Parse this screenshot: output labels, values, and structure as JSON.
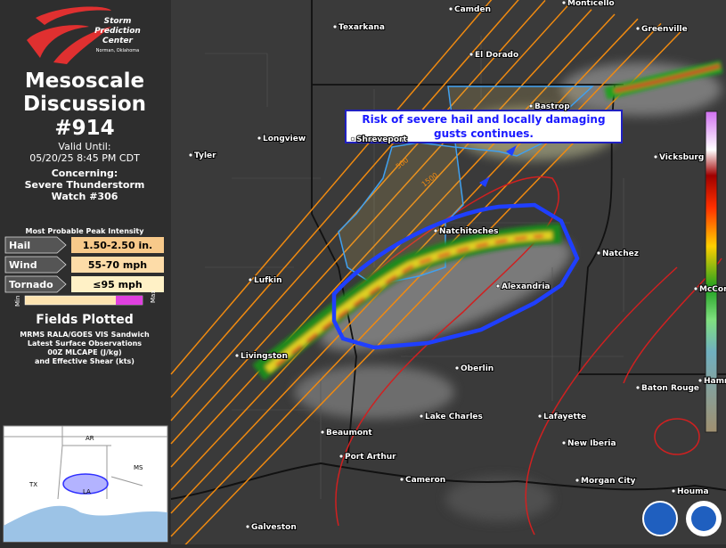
{
  "header": {
    "logo_lines": [
      "Storm",
      "Prediction",
      "Center"
    ],
    "logo_sub": "Norman, Oklahoma",
    "title_lines": [
      "Mesoscale",
      "Discussion",
      "#914"
    ],
    "valid_label": "Valid Until:",
    "valid_time": "05/20/25 8:45 PM CDT",
    "concerning_label": "Concerning:",
    "concerning": [
      "Severe Thunderstorm",
      "Watch #306"
    ]
  },
  "intensity": {
    "title": "Most Probable Peak Intensity",
    "rows": [
      {
        "label": "Hail",
        "value": "1.50-2.50 in."
      },
      {
        "label": "Wind",
        "value": "55-70 mph"
      },
      {
        "label": "Tornado",
        "value": "≤95 mph"
      }
    ],
    "scale": [
      "Min",
      "Max"
    ]
  },
  "fields": {
    "title": "Fields Plotted",
    "lines": [
      "MRMS RALA/GOES VIS Sandwich",
      "Latest Surface Observations",
      "00Z MLCAPE (J/kg)",
      "and Effective Shear (kts)"
    ]
  },
  "inset": {
    "labels": [
      "AR",
      "TX",
      "LA",
      "MS"
    ]
  },
  "map": {
    "annotation": [
      "Risk of severe hail and locally damaging",
      "gusts continues."
    ],
    "cities": [
      "Camden",
      "Monticello",
      "Greenville",
      "Texarkana",
      "El Dorado",
      "Bastrop",
      "Longview",
      "Shreveport",
      "Vicksburg",
      "Tyler",
      "Natchitoches",
      "Natchez",
      "Lufkin",
      "Alexandria",
      "McComb",
      "Livingston",
      "Oberlin",
      "Baton Rouge",
      "Hammond",
      "Lake Charles",
      "Lafayette",
      "Beaumont",
      "New Iberia",
      "Port Arthur",
      "Cameron",
      "Morgan City",
      "Houma",
      "Galveston"
    ],
    "contour_labels": [
      "500",
      "1500"
    ]
  }
}
